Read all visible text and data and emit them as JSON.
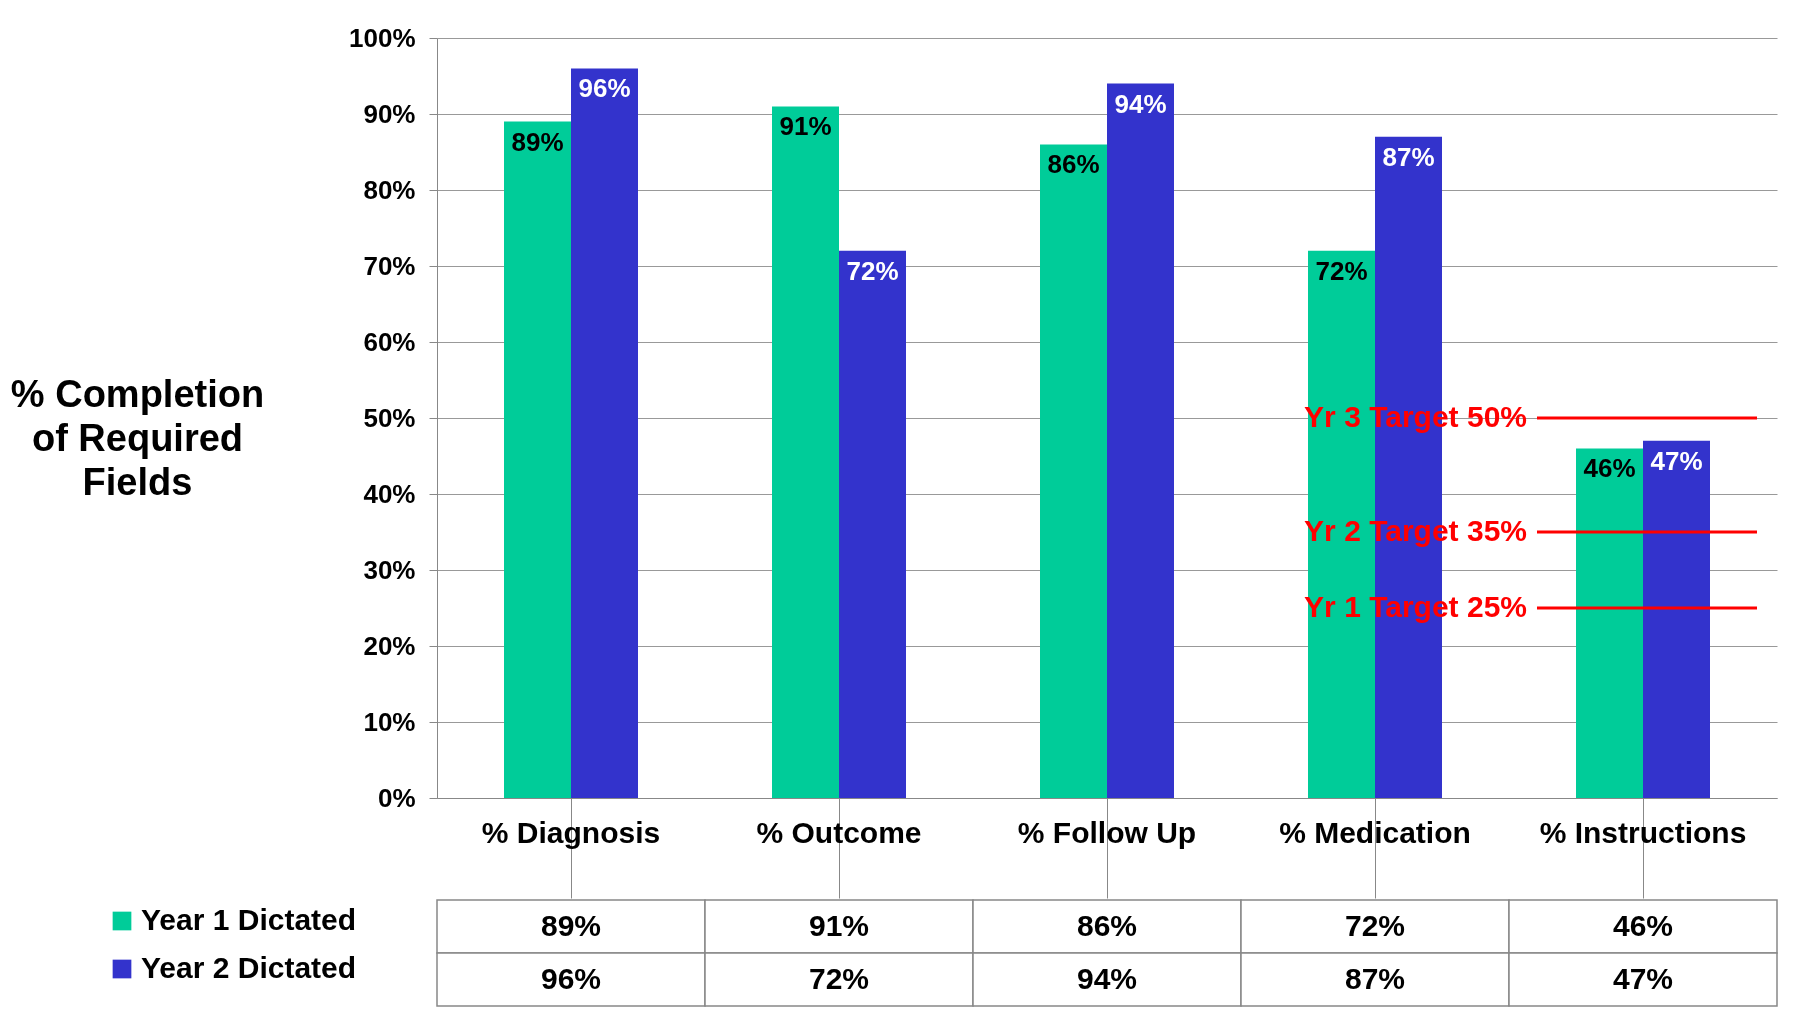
{
  "chart_data": {
    "type": "bar",
    "ylabel": "% Completion of Required Fields",
    "categories": [
      "% Diagnosis",
      "% Outcome",
      "% Follow Up",
      "% Medication",
      "% Instructions"
    ],
    "series": [
      {
        "name": "Year 1 Dictated",
        "color": "#00cc99",
        "values": [
          89,
          91,
          86,
          72,
          46
        ]
      },
      {
        "name": "Year 2 Dictated",
        "color": "#3333cc",
        "values": [
          96,
          72,
          94,
          87,
          47
        ]
      }
    ],
    "ylim": [
      0,
      100
    ],
    "yticks": [
      {
        "value": 0,
        "label": "0%"
      },
      {
        "value": 10,
        "label": "10%"
      },
      {
        "value": 20,
        "label": "20%"
      },
      {
        "value": 30,
        "label": "30%"
      },
      {
        "value": 40,
        "label": "40%"
      },
      {
        "value": 50,
        "label": "50%"
      },
      {
        "value": 60,
        "label": "60%"
      },
      {
        "value": 70,
        "label": "70%"
      },
      {
        "value": 80,
        "label": "80%"
      },
      {
        "value": 90,
        "label": "90%"
      },
      {
        "value": 100,
        "label": "100%"
      }
    ],
    "value_labels": [
      [
        "89%",
        "91%",
        "86%",
        "72%",
        "46%"
      ],
      [
        "96%",
        "72%",
        "94%",
        "87%",
        "47%"
      ]
    ],
    "ref_lines": [
      {
        "axis": "y",
        "value": 50,
        "label": "Yr 3 Target 50%",
        "color": "#ff0000"
      },
      {
        "axis": "y",
        "value": 35,
        "label": "Yr 2 Target 35%",
        "color": "#ff0000"
      },
      {
        "axis": "y",
        "value": 25,
        "label": "Yr 1 Target 25%",
        "color": "#ff0000"
      }
    ],
    "grid": "y",
    "legend": "bottom left"
  }
}
